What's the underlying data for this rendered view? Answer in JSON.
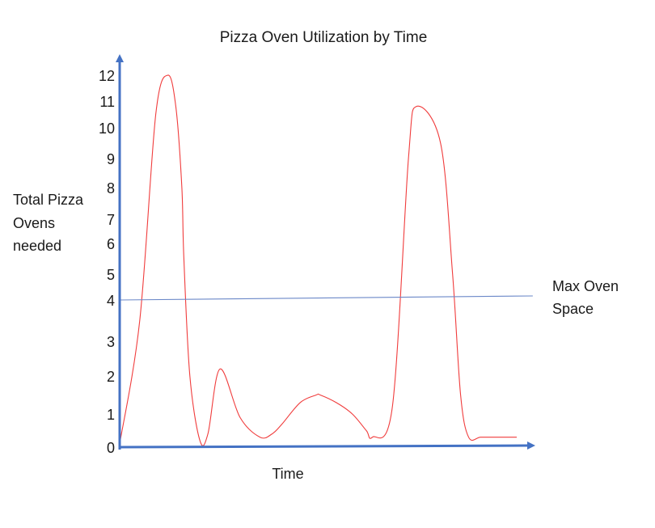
{
  "chart_data": {
    "type": "line",
    "title": "Pizza Oven Utilization by Time",
    "xlabel": "Time",
    "ylabel": [
      "Total Pizza",
      "Ovens",
      "needed"
    ],
    "y_ticks": [
      "0",
      "1",
      "2",
      "3",
      "4",
      "5",
      "6",
      "7",
      "8",
      "9",
      "10",
      "11",
      "12"
    ],
    "x_ticks_shown": false,
    "series": [
      {
        "color": "#f03c3c",
        "x": [
          0,
          0.05,
          0.09,
          0.12,
          0.14,
          0.155,
          0.16,
          0.175,
          0.2,
          0.22,
          0.25,
          0.3,
          0.35,
          0.38,
          0.405,
          0.45,
          0.49,
          0.5,
          0.54,
          0.58,
          0.615,
          0.63,
          0.68,
          0.72,
          0.74,
          0.8,
          0.83,
          0.85,
          0.87,
          0.9,
          0.94,
          0.99
        ],
        "y": [
          0.1,
          3.5,
          10.5,
          12.0,
          10.8,
          8.0,
          5.5,
          2.0,
          0.2,
          0.4,
          2.2,
          0.9,
          0.3,
          0.4,
          0.7,
          1.3,
          1.5,
          1.5,
          1.3,
          1.0,
          0.5,
          0.3,
          1.2,
          9.0,
          10.8,
          9.5,
          5.0,
          1.5,
          0.3,
          0.3,
          0.3,
          0.3
        ]
      },
      {
        "color": "#6b88c8",
        "x": [
          0,
          1.03
        ],
        "y": [
          4.0,
          4.0
        ]
      }
    ],
    "reference_label": [
      "Max Oven",
      "Space"
    ],
    "axis_color": "#4472c4",
    "ylim": [
      0,
      12.5
    ],
    "grid": false,
    "legend": "none"
  }
}
